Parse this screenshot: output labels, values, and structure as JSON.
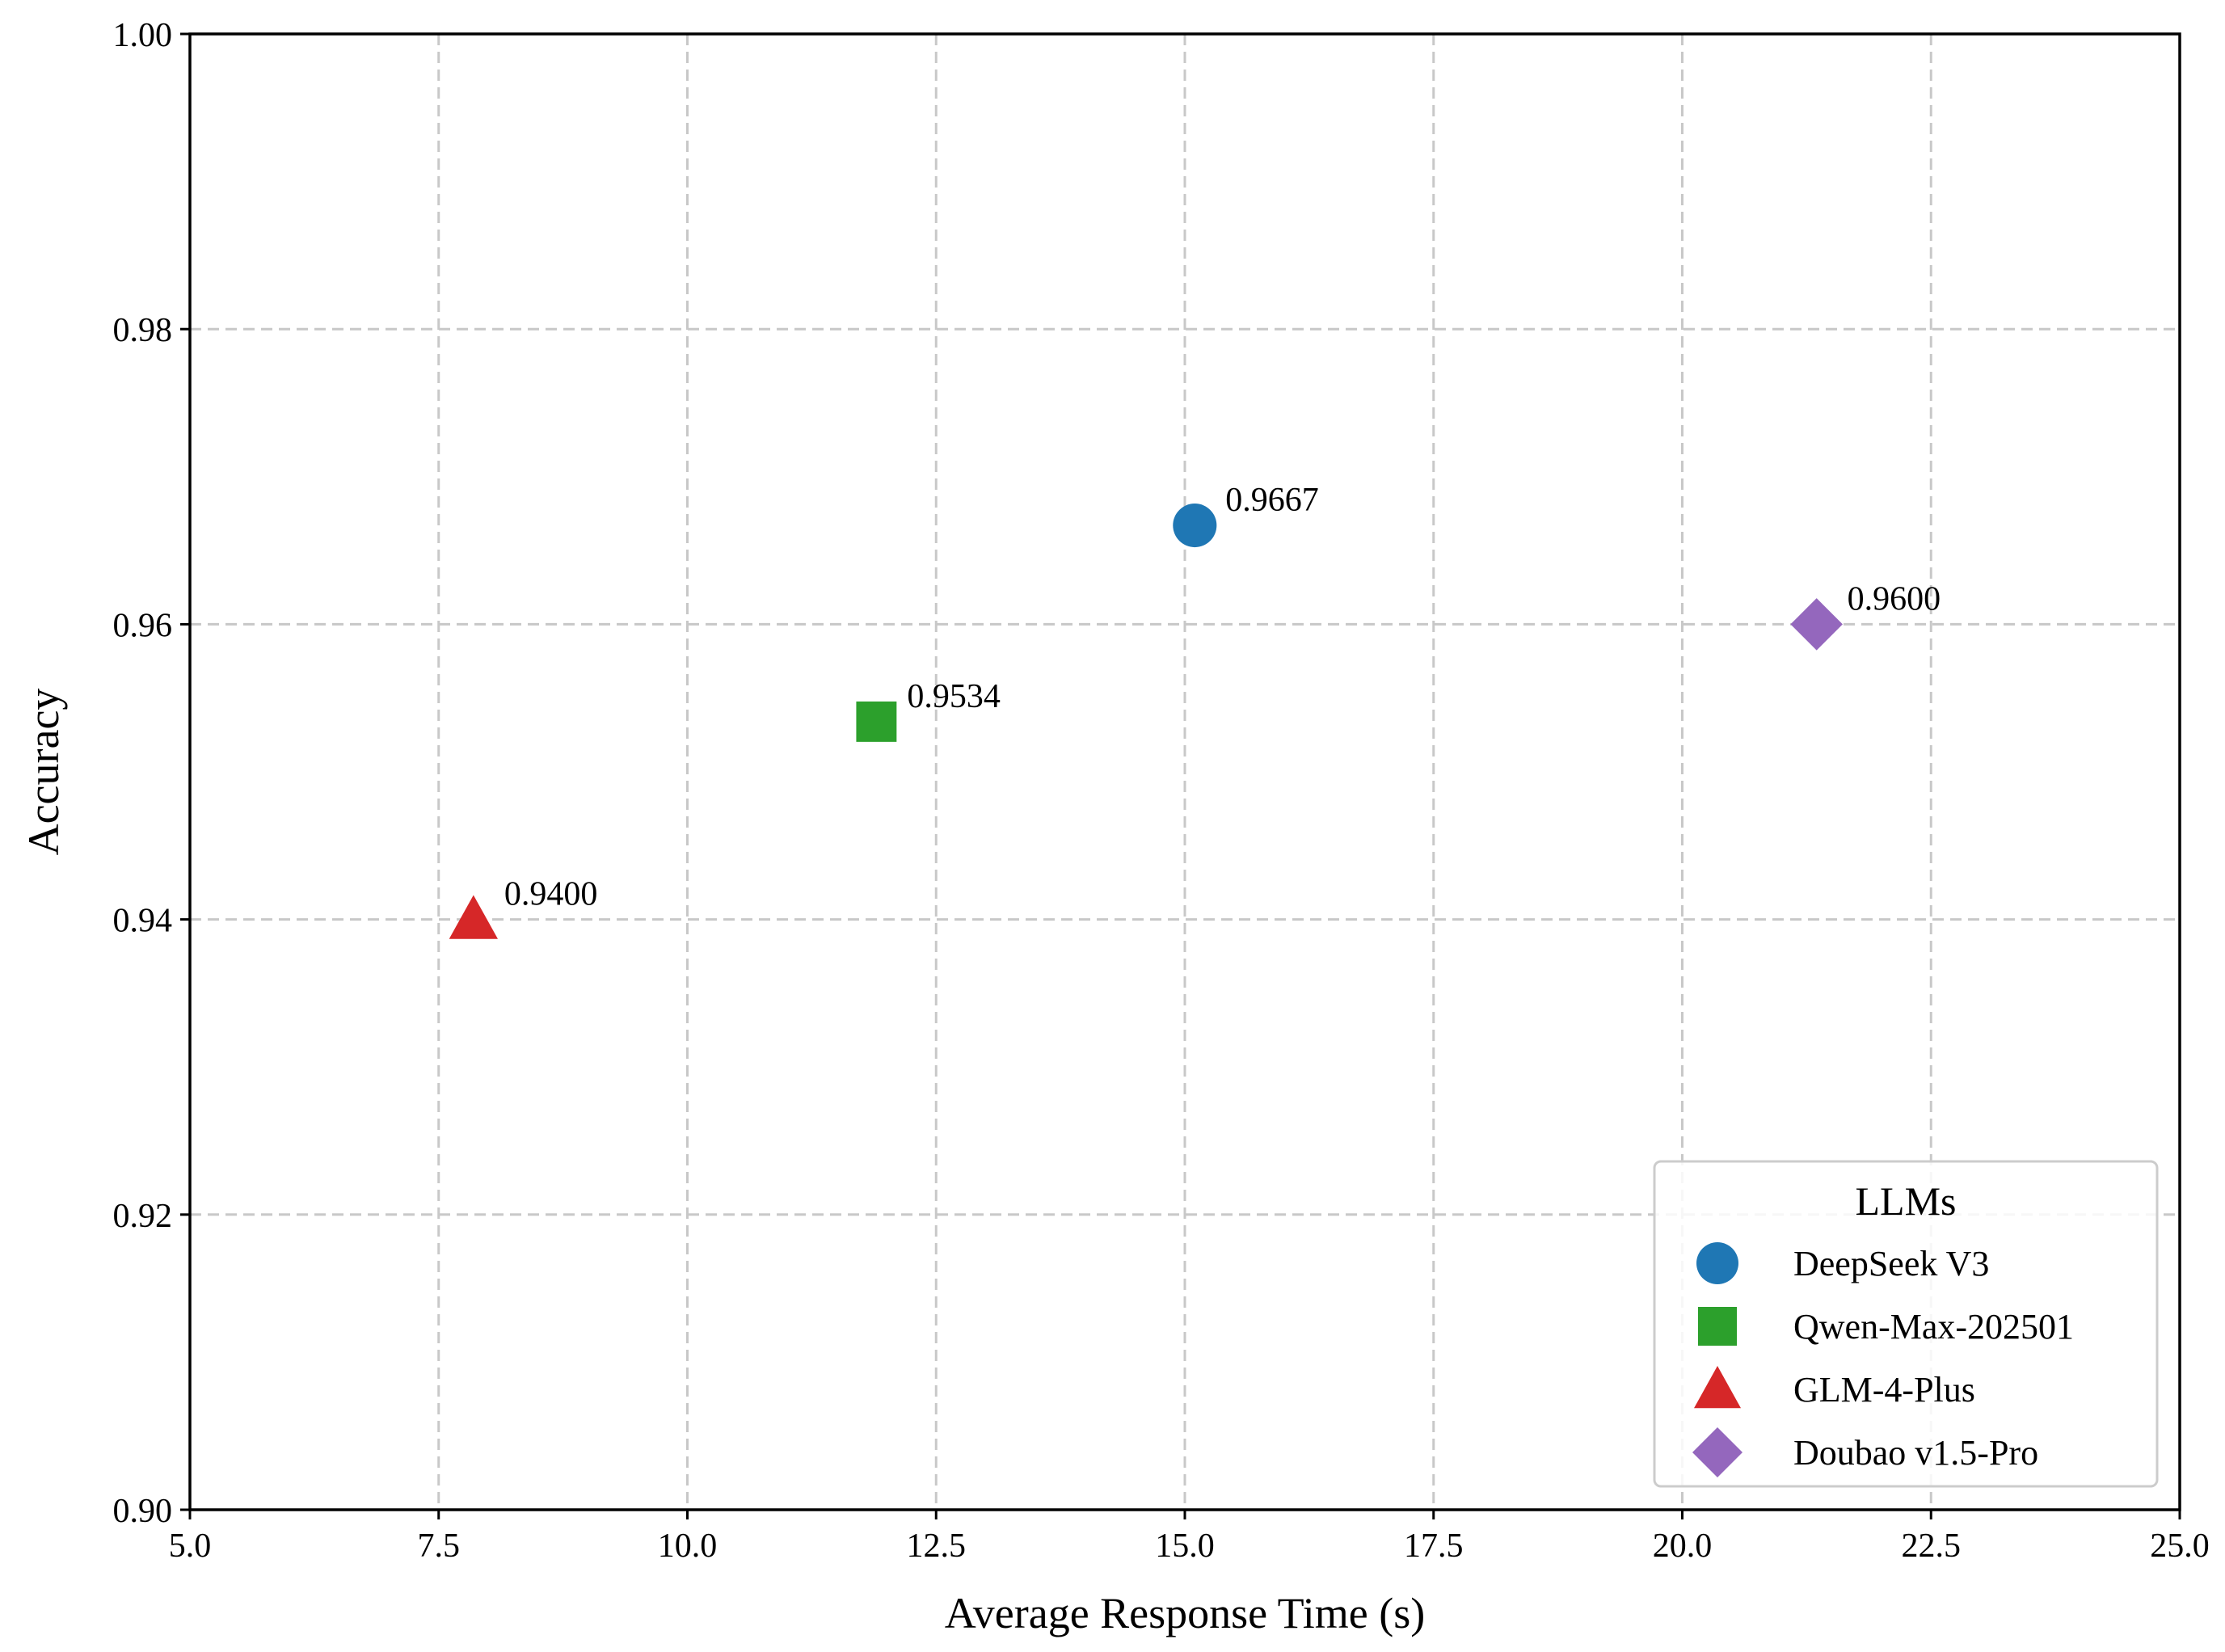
{
  "chart_data": {
    "type": "scatter",
    "title": "",
    "xlabel": "Average Response Time (s)",
    "ylabel": "Accuracy",
    "xlim": [
      5.0,
      25.0
    ],
    "ylim": [
      0.9,
      1.0
    ],
    "xticks": [
      5.0,
      7.5,
      10.0,
      12.5,
      15.0,
      17.5,
      20.0,
      22.5,
      25.0
    ],
    "xtick_labels": [
      "5.0",
      "7.5",
      "10.0",
      "12.5",
      "15.0",
      "17.5",
      "20.0",
      "22.5",
      "25.0"
    ],
    "yticks": [
      0.9,
      0.92,
      0.94,
      0.96,
      0.98,
      1.0
    ],
    "ytick_labels": [
      "0.90",
      "0.92",
      "0.94",
      "0.96",
      "0.98",
      "1.00"
    ],
    "grid": true,
    "legend": {
      "title": "LLMs",
      "position": "bottom-right"
    },
    "series": [
      {
        "name": "DeepSeek V3",
        "x": 15.1,
        "y": 0.9667,
        "label": "0.9667",
        "marker": "circle",
        "color": "#1f77b4"
      },
      {
        "name": "Qwen-Max-202501",
        "x": 11.9,
        "y": 0.9534,
        "label": "0.9534",
        "marker": "square",
        "color": "#2ca02c"
      },
      {
        "name": "GLM-4-Plus",
        "x": 7.85,
        "y": 0.94,
        "label": "0.9400",
        "marker": "triangle",
        "color": "#d62728"
      },
      {
        "name": "Doubao v1.5-Pro",
        "x": 21.35,
        "y": 0.96,
        "label": "0.9600",
        "marker": "diamond",
        "color": "#9467bd"
      }
    ]
  }
}
